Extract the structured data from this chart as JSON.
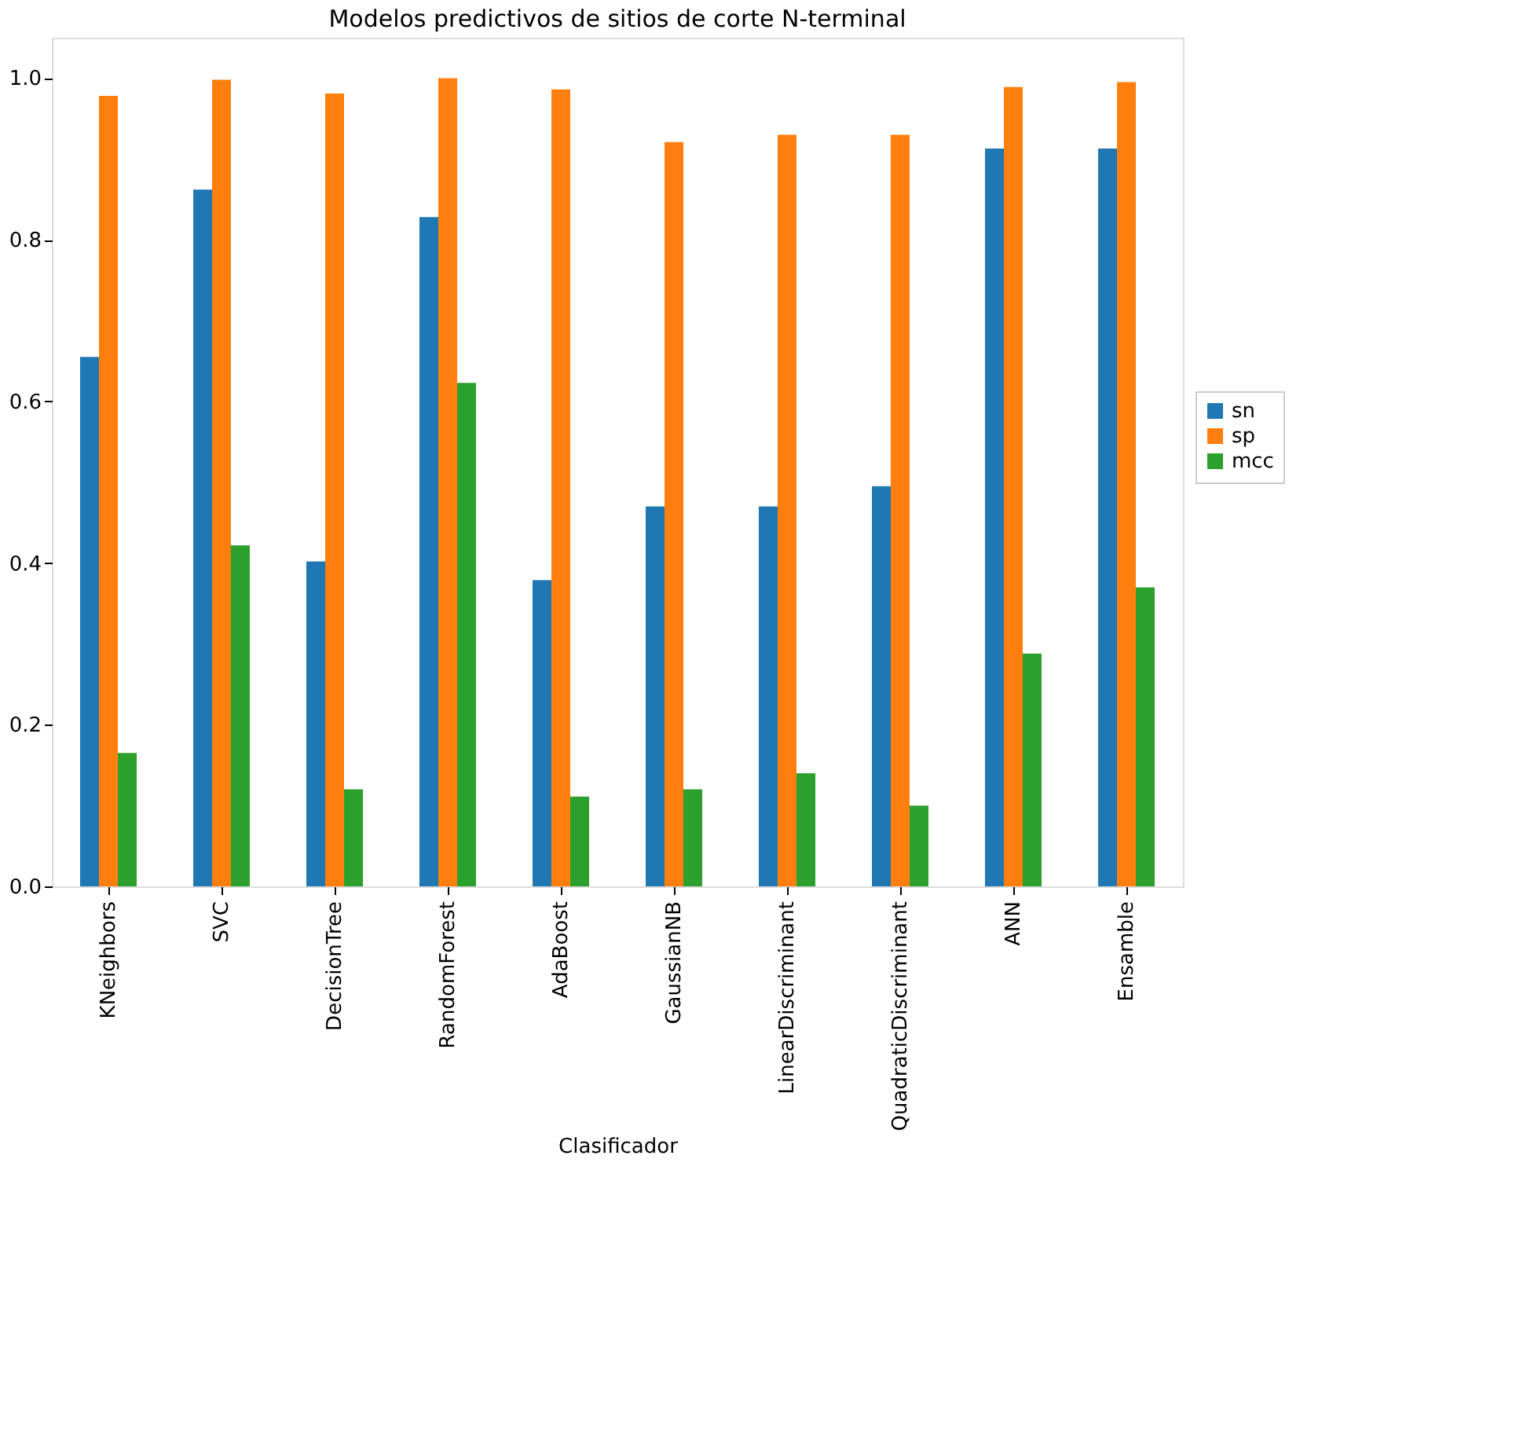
{
  "chart_data": {
    "type": "bar",
    "title": "Modelos predictivos de sitios de corte N-terminal",
    "xlabel": "Clasificador",
    "categories": [
      "KNeighbors",
      "SVC",
      "DecisionTree",
      "RandomForest",
      "AdaBoost",
      "GaussianNB",
      "LinearDiscriminant",
      "QuadraticDiscriminant",
      "ANN",
      "Ensamble"
    ],
    "series": [
      {
        "name": "sn",
        "color": "#1f77b4",
        "values": [
          0.655,
          0.862,
          0.402,
          0.828,
          0.379,
          0.47,
          0.47,
          0.495,
          0.913,
          0.913
        ]
      },
      {
        "name": "sp",
        "color": "#ff7f0e",
        "values": [
          0.978,
          0.998,
          0.981,
          1.0,
          0.986,
          0.921,
          0.93,
          0.93,
          0.989,
          0.995
        ]
      },
      {
        "name": "mcc",
        "color": "#2ca02c",
        "values": [
          0.165,
          0.422,
          0.12,
          0.623,
          0.111,
          0.12,
          0.14,
          0.1,
          0.288,
          0.37
        ]
      }
    ],
    "ylim": [
      0,
      1.05
    ],
    "yticks": [
      {
        "value": 0,
        "label": "0.0"
      },
      0.2,
      0.4,
      0.6,
      0.8,
      {
        "value": 1,
        "label": "1.0"
      }
    ],
    "grid": false,
    "legend": "right"
  }
}
